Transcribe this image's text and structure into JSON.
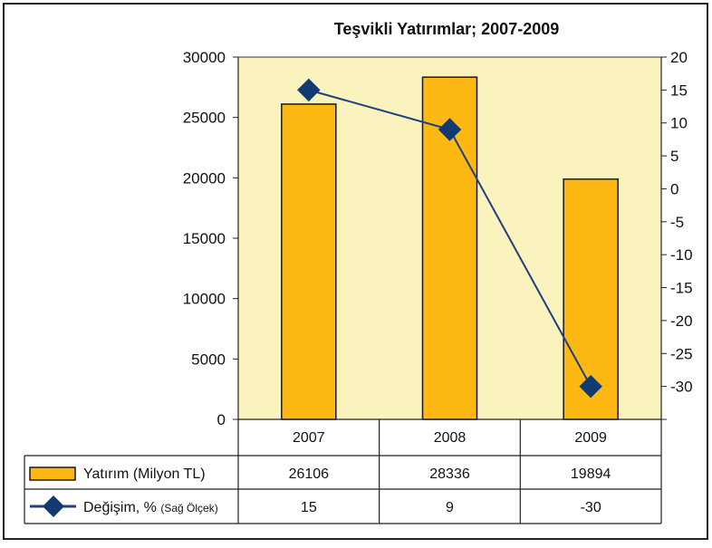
{
  "chart_data": {
    "type": "bar",
    "title": "Teşvikli Yatırımlar; 2007-2009",
    "categories": [
      "2007",
      "2008",
      "2009"
    ],
    "series": [
      {
        "name": "Yatırım (Milyon TL)",
        "type": "bar",
        "axis": "left",
        "values": [
          26106,
          28336,
          19894
        ],
        "value_labels": [
          "26106",
          "28336",
          "19894"
        ]
      },
      {
        "name": "Değişim, %",
        "name_suffix": "(Sağ Ölçek)",
        "type": "line",
        "axis": "right",
        "marker": "diamond",
        "values": [
          15,
          9,
          -30
        ],
        "value_labels": [
          "15",
          "9",
          "-30"
        ]
      }
    ],
    "y_left": {
      "lim": [
        0,
        30000
      ],
      "ticks": [
        "0",
        "5000",
        "10000",
        "15000",
        "20000",
        "25000",
        "30000"
      ]
    },
    "y_right": {
      "lim": [
        -35,
        20
      ],
      "ticks": [
        "20",
        "15",
        "10",
        "5",
        "0",
        "-5",
        "-10",
        "-15",
        "-20",
        "-25",
        "-30"
      ]
    },
    "grid": false,
    "legend": "data-table-below",
    "colors": {
      "plot_background": "#fbf3bd",
      "bar_fill": "#fdb813",
      "bar_stroke": "#1a1a1a",
      "line": "#1f3f7f",
      "marker": "#123a72"
    }
  }
}
